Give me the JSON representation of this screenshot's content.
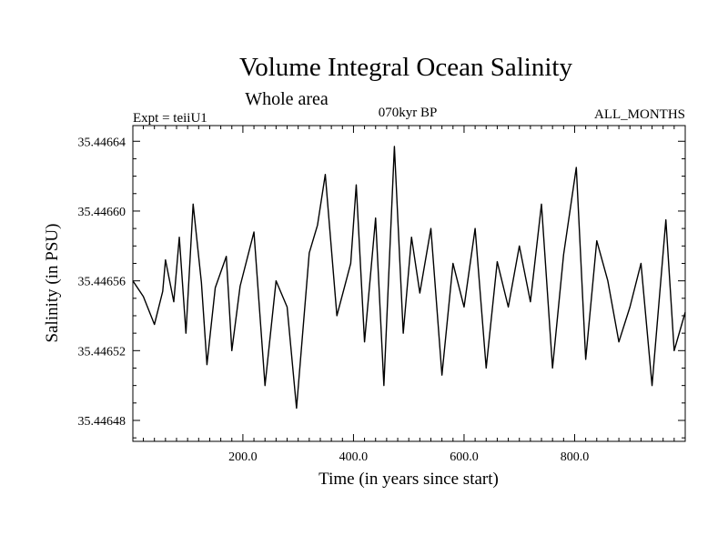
{
  "chart_data": {
    "type": "line",
    "title": "Volume Integral Ocean Salinity",
    "subtitle": "Whole area",
    "annotations": {
      "left": "Expt = teiiU1",
      "center": "070kyr BP",
      "right": "ALL_MONTHS"
    },
    "xlabel": "Time (in years since start)",
    "ylabel": "Salinity (in PSU)",
    "xlim": [
      1,
      1000
    ],
    "ylim": [
      35.446468,
      35.446649
    ],
    "x_ticks": [
      200,
      400,
      600,
      800
    ],
    "x_tick_labels": [
      "200.0",
      "400.0",
      "600.0",
      "800.0"
    ],
    "y_ticks": [
      35.44648,
      35.44652,
      35.44656,
      35.4466,
      35.44664
    ],
    "y_tick_labels": [
      "35.44648",
      "35.44652",
      "35.44656",
      "35.44660",
      "35.44664"
    ],
    "grid": false,
    "legend": "none",
    "line_color": "#000000",
    "series": [
      {
        "x": [
          1,
          20,
          40,
          55,
          60,
          75,
          85,
          97,
          110,
          125,
          135,
          150,
          170,
          180,
          195,
          220,
          240,
          260,
          280,
          297,
          320,
          335,
          349,
          370,
          395,
          405,
          420,
          440,
          455,
          474,
          490,
          505,
          520,
          540,
          560,
          580,
          600,
          620,
          640,
          660,
          680,
          700,
          720,
          740,
          760,
          780,
          803,
          820,
          840,
          860,
          880,
          900,
          920,
          940,
          965,
          980,
          1000
        ],
        "y": [
          35.44656,
          35.446551,
          35.446535,
          35.446554,
          35.446572,
          35.446548,
          35.446585,
          35.44653,
          35.446604,
          35.446559,
          35.446512,
          35.446556,
          35.446574,
          35.44652,
          35.446557,
          35.446588,
          35.4465,
          35.44656,
          35.446545,
          35.446487,
          35.446576,
          35.446592,
          35.446621,
          35.44654,
          35.44657,
          35.446615,
          35.446525,
          35.446596,
          35.4465,
          35.446637,
          35.44653,
          35.446585,
          35.446553,
          35.44659,
          35.446506,
          35.44657,
          35.446545,
          35.44659,
          35.44651,
          35.446571,
          35.446545,
          35.44658,
          35.446548,
          35.446604,
          35.44651,
          35.446575,
          35.446625,
          35.446515,
          35.446583,
          35.44656,
          35.446525,
          35.446545,
          35.44657,
          35.4465,
          35.446595,
          35.44652,
          35.446542
        ]
      }
    ]
  }
}
